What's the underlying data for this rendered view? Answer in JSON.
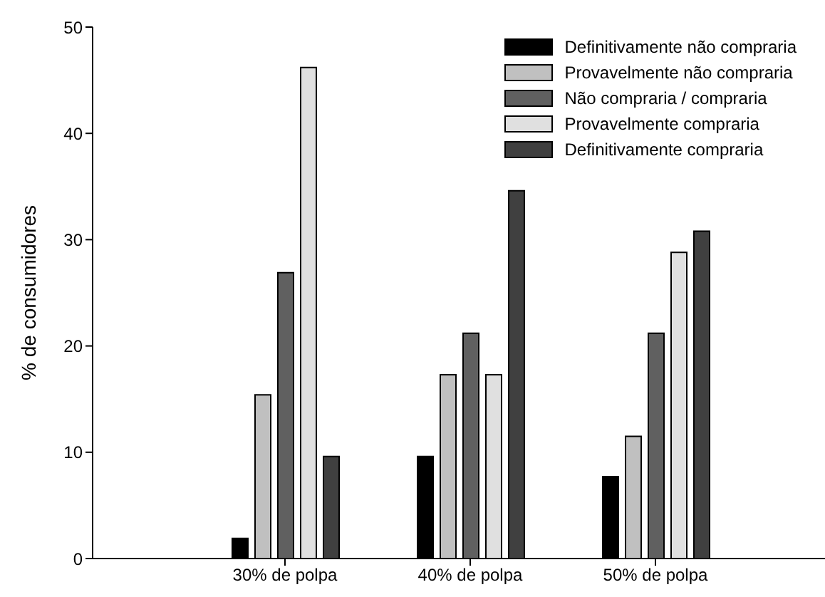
{
  "chart_data": {
    "type": "bar",
    "ylabel": "% de consumidores",
    "categories": [
      "30% de polpa",
      "40% de polpa",
      "50% de polpa"
    ],
    "series": [
      {
        "name": "Definitivamente não compraria",
        "color": "#000000",
        "values": [
          1.9,
          9.6,
          7.7
        ]
      },
      {
        "name": "Provavelmente não compraria",
        "color": "#c0c0c0",
        "values": [
          15.4,
          17.3,
          11.5
        ]
      },
      {
        "name": "Não compraria / compraria",
        "color": "#606060",
        "values": [
          26.9,
          21.2,
          21.2
        ]
      },
      {
        "name": "Provavelmente compraria",
        "color": "#e0e0e0",
        "values": [
          46.2,
          17.3,
          28.8
        ]
      },
      {
        "name": "Definitivamente compraria",
        "color": "#404040",
        "values": [
          9.6,
          34.6,
          30.8
        ]
      }
    ],
    "ylim": [
      0,
      50
    ],
    "yticks": [
      0,
      10,
      20,
      30,
      40,
      50
    ],
    "grid": false,
    "legend": "top right"
  }
}
